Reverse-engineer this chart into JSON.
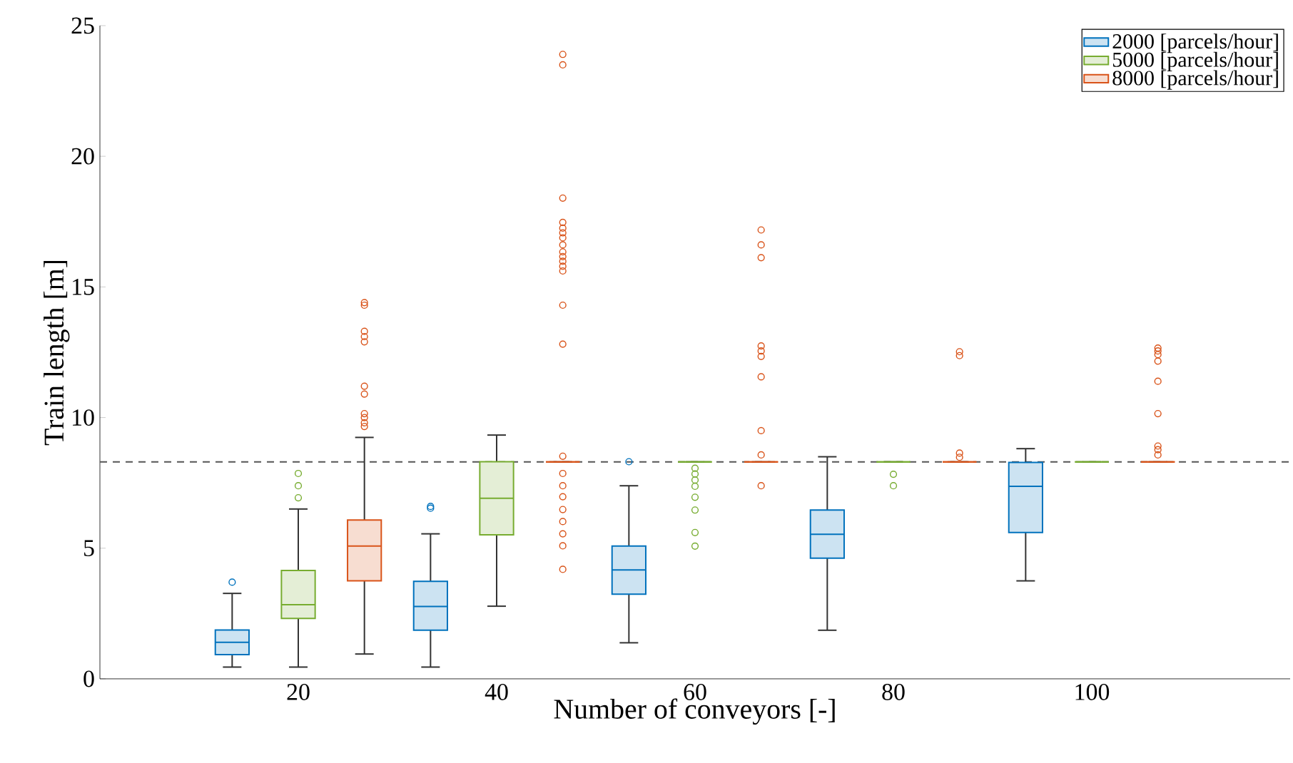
{
  "chart_data": {
    "type": "box",
    "xlabel": "Number of conveyors [-]",
    "ylabel": "Train length [m]",
    "categories": [
      "20",
      "40",
      "60",
      "80",
      "100"
    ],
    "ylim": [
      0,
      25
    ],
    "yticks": [
      0,
      5,
      10,
      15,
      20,
      25
    ],
    "grid": false,
    "legend": "top right",
    "marker": "circle",
    "ref_lines": [
      {
        "axis": "y",
        "value": 8.3,
        "color": "#555555",
        "line_style": "dashed"
      }
    ],
    "series": [
      {
        "name": "2000 [parcels/hour]",
        "color": "#0072bd",
        "boxes": [
          {
            "low": 0.45,
            "q1": 0.93,
            "median": 1.4,
            "q3": 1.87,
            "high": 3.27,
            "outliers": [
              3.7
            ]
          },
          {
            "low": 0.45,
            "q1": 1.86,
            "median": 2.77,
            "q3": 3.73,
            "high": 5.55,
            "outliers": [
              6.53,
              6.6
            ]
          },
          {
            "low": 1.38,
            "q1": 3.24,
            "median": 4.17,
            "q3": 5.08,
            "high": 7.39,
            "outliers": [
              8.31
            ]
          },
          {
            "low": 1.86,
            "q1": 4.62,
            "median": 5.53,
            "q3": 6.46,
            "high": 8.5
          },
          {
            "low": 3.75,
            "q1": 5.6,
            "median": 7.37,
            "q3": 8.28,
            "high": 8.81
          }
        ]
      },
      {
        "name": "5000 [parcels/hour]",
        "color": "#77ac30",
        "boxes": [
          {
            "low": 0.45,
            "q1": 2.31,
            "median": 2.84,
            "q3": 4.15,
            "high": 6.5,
            "outliers": [
              6.93,
              7.39,
              7.86
            ]
          },
          {
            "low": 2.78,
            "q1": 5.51,
            "median": 6.91,
            "q3": 8.31,
            "high": 9.33
          },
          {
            "low": 8.3,
            "q1": 8.3,
            "median": 8.3,
            "q3": 8.3,
            "high": 8.3,
            "outliers": [
              8.06,
              7.84,
              7.61,
              7.37,
              6.95,
              6.46,
              5.6,
              5.08
            ]
          },
          {
            "low": 8.3,
            "q1": 8.3,
            "median": 8.3,
            "q3": 8.3,
            "high": 8.3,
            "outliers": [
              7.83,
              7.39
            ]
          },
          {
            "low": 8.3,
            "q1": 8.3,
            "median": 8.3,
            "q3": 8.3,
            "high": 8.3
          }
        ]
      },
      {
        "name": "8000 [parcels/hour]",
        "color": "#d95319",
        "boxes": [
          {
            "low": 0.95,
            "q1": 3.75,
            "median": 5.08,
            "q3": 6.08,
            "high": 9.24,
            "outliers": [
              9.66,
              9.8,
              10.0,
              10.15,
              10.9,
              11.2,
              12.9,
              13.1,
              13.3,
              14.3,
              14.4
            ]
          },
          {
            "low": 8.3,
            "q1": 8.3,
            "median": 8.3,
            "q3": 8.3,
            "high": 8.3,
            "outliers": [
              23.9,
              23.5,
              18.4,
              17.47,
              17.25,
              17.07,
              16.88,
              16.61,
              16.34,
              16.16,
              15.98,
              15.79,
              15.61,
              14.3,
              12.81,
              8.52,
              7.86,
              7.39,
              6.97,
              6.48,
              6.02,
              5.55,
              5.09,
              4.19
            ]
          },
          {
            "low": 8.3,
            "q1": 8.3,
            "median": 8.3,
            "q3": 8.3,
            "high": 8.3,
            "outliers": [
              17.18,
              16.61,
              16.12,
              12.74,
              12.55,
              12.34,
              11.56,
              9.5,
              8.57,
              7.39
            ]
          },
          {
            "low": 8.3,
            "q1": 8.3,
            "median": 8.3,
            "q3": 8.3,
            "high": 8.3,
            "outliers": [
              12.52,
              12.37,
              8.64,
              8.48
            ]
          },
          {
            "low": 8.3,
            "q1": 8.3,
            "median": 8.3,
            "q3": 8.3,
            "high": 8.3,
            "outliers": [
              12.66,
              12.55,
              12.41,
              12.16,
              11.39,
              10.15,
              8.91,
              8.77,
              8.57
            ]
          }
        ]
      }
    ]
  }
}
